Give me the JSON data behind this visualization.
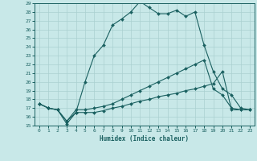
{
  "xlabel": "Humidex (Indice chaleur)",
  "background_color": "#c8e8e8",
  "grid_color": "#aad0d0",
  "line_color": "#1a6060",
  "xlim_min": -0.5,
  "xlim_max": 23.5,
  "ylim_min": 15,
  "ylim_max": 29,
  "xticks": [
    0,
    1,
    2,
    3,
    4,
    5,
    6,
    7,
    8,
    9,
    10,
    11,
    12,
    13,
    14,
    15,
    16,
    17,
    18,
    19,
    20,
    21,
    22,
    23
  ],
  "yticks": [
    15,
    16,
    17,
    18,
    19,
    20,
    21,
    22,
    23,
    24,
    25,
    26,
    27,
    28,
    29
  ],
  "line1_x": [
    0,
    1,
    2,
    3,
    4,
    5,
    6,
    7,
    8,
    9,
    10,
    11,
    12,
    13,
    14,
    15,
    16,
    17,
    18,
    19,
    20,
    21,
    22,
    23
  ],
  "line1_y": [
    17.5,
    17.0,
    16.8,
    15.2,
    16.5,
    16.5,
    16.5,
    16.7,
    17.0,
    17.2,
    17.5,
    17.8,
    18.0,
    18.3,
    18.5,
    18.7,
    19.0,
    19.2,
    19.5,
    19.8,
    21.2,
    16.8,
    16.8,
    16.8
  ],
  "line2_x": [
    0,
    1,
    2,
    3,
    4,
    5,
    6,
    7,
    8,
    9,
    10,
    11,
    12,
    13,
    14,
    15,
    16,
    17,
    18,
    19,
    20,
    21,
    22,
    23
  ],
  "line2_y": [
    17.5,
    17.0,
    16.8,
    15.5,
    16.8,
    16.8,
    17.0,
    17.2,
    17.5,
    18.0,
    18.5,
    19.0,
    19.5,
    20.0,
    20.5,
    21.0,
    21.5,
    22.0,
    22.5,
    19.2,
    18.5,
    17.0,
    16.8,
    16.8
  ],
  "line3_x": [
    0,
    1,
    2,
    3,
    4,
    5,
    6,
    7,
    8,
    9,
    10,
    11,
    12,
    13,
    14,
    15,
    16,
    17,
    18,
    19,
    20,
    21,
    22,
    23
  ],
  "line3_y": [
    17.5,
    17.0,
    16.8,
    15.5,
    16.5,
    20.0,
    23.0,
    24.2,
    26.5,
    27.2,
    28.0,
    29.2,
    28.5,
    27.8,
    27.8,
    28.2,
    27.5,
    28.0,
    24.2,
    21.2,
    19.2,
    18.5,
    17.0,
    16.8
  ]
}
